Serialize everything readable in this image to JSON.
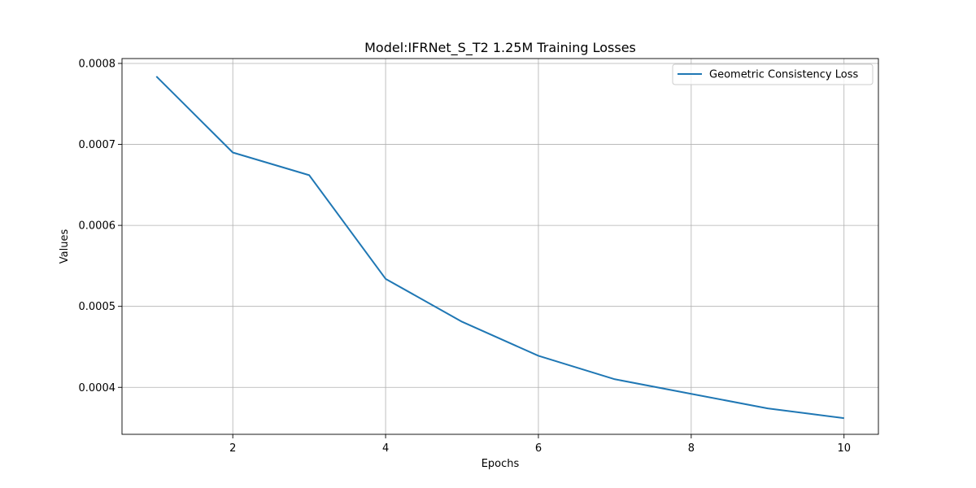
{
  "chart_data": {
    "type": "line",
    "title": "Model:IFRNet_S_T2 1.25M Training Losses",
    "xlabel": "Epochs",
    "ylabel": "Values",
    "x": [
      1,
      2,
      3,
      4,
      5,
      6,
      7,
      8,
      9,
      10
    ],
    "xlim": [
      0.55,
      10.45
    ],
    "ylim": [
      0.000342,
      0.000806
    ],
    "xticks": [
      2,
      4,
      6,
      8,
      10
    ],
    "xtick_labels": [
      "2",
      "4",
      "6",
      "8",
      "10"
    ],
    "yticks": [
      0.0004,
      0.0005,
      0.0006,
      0.0007,
      0.0008
    ],
    "ytick_labels": [
      "0.0004",
      "0.0005",
      "0.0006",
      "0.0007",
      "0.0008"
    ],
    "grid": true,
    "legend_position": "top-right",
    "series": [
      {
        "name": "Geometric Consistency Loss",
        "color": "#1f77b4",
        "values": [
          0.000784,
          0.00069,
          0.000662,
          0.000534,
          0.000481,
          0.000439,
          0.00041,
          0.000392,
          0.000374,
          0.000362
        ]
      }
    ]
  }
}
